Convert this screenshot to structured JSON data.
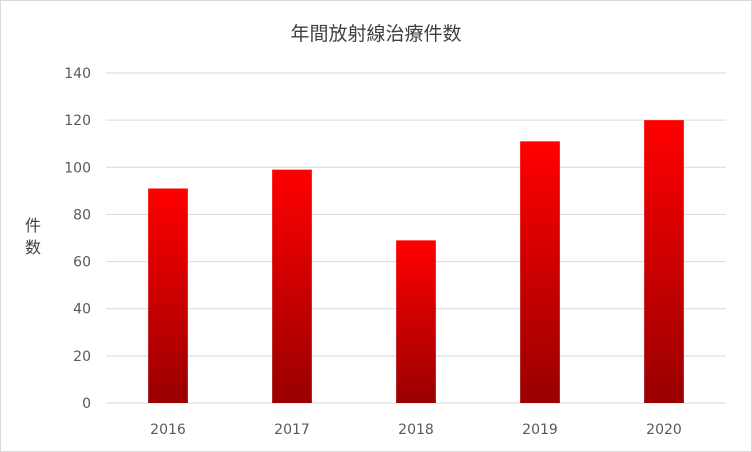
{
  "chart_data": {
    "type": "bar",
    "title": "年間放射線治療件数",
    "ylabel": "件数",
    "categories": [
      "2016",
      "2017",
      "2018",
      "2019",
      "2020"
    ],
    "values": [
      91,
      99,
      69,
      111,
      120
    ],
    "ylim": [
      0,
      140
    ],
    "yticks": [
      0,
      20,
      40,
      60,
      80,
      100,
      120,
      140
    ],
    "grid": true,
    "legend": "none",
    "bar_color_top": "#ff0000",
    "bar_color_bottom": "#990000",
    "gridline_color": "#d9d9d9"
  }
}
